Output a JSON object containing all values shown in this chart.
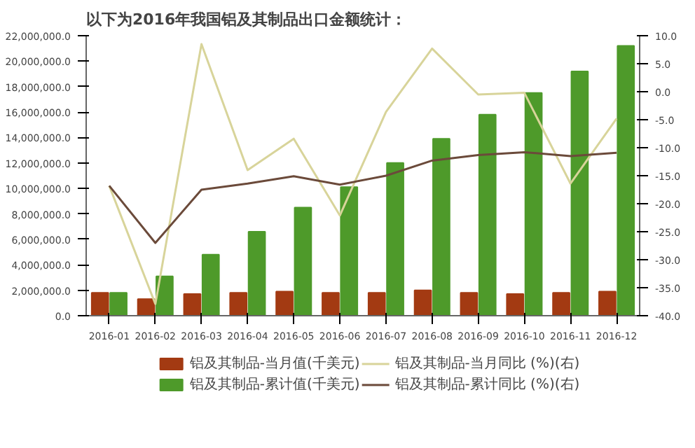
{
  "chart_data": {
    "type": "bar",
    "title": "以下为2016年我国铝及其制品出口金额统计：",
    "categories": [
      "2016-01",
      "2016-02",
      "2016-03",
      "2016-04",
      "2016-05",
      "2016-06",
      "2016-07",
      "2016-08",
      "2016-09",
      "2016-10",
      "2016-11",
      "2016-12"
    ],
    "series": [
      {
        "name": "铝及其制品-当月值(千美元)",
        "color": "#a33a12",
        "values": [
          1800000,
          1300000,
          1700000,
          1800000,
          1900000,
          1800000,
          1800000,
          2000000,
          1800000,
          1700000,
          1800000,
          1900000
        ]
      },
      {
        "name": "铝及其制品-累计值(千美元)",
        "color": "#4e9a2a",
        "values": [
          1800000,
          3100000,
          4800000,
          6600000,
          8500000,
          10100000,
          12000000,
          13900000,
          15800000,
          17500000,
          19200000,
          21200000
        ]
      },
      {
        "name": "铝及其制品-当月同比 (%)(右)",
        "color": "#d8d49a",
        "type": "line",
        "axis": "y2",
        "values": [
          -16.8,
          -37.9,
          8.5,
          -14.0,
          -8.4,
          -22.1,
          -3.6,
          7.7,
          -0.5,
          -0.2,
          -16.4,
          -4.8
        ]
      },
      {
        "name": "铝及其制品-累计同比 (%)(右)",
        "color": "#6b4a3a",
        "type": "line",
        "axis": "y2",
        "values": [
          -16.8,
          -27.0,
          -17.5,
          -16.4,
          -15.1,
          -16.6,
          -15.0,
          -12.3,
          -11.3,
          -10.8,
          -11.5,
          -10.9
        ]
      }
    ],
    "ylim": [
      0,
      22000000
    ],
    "yticks": [
      {
        "value": 0,
        "label": "0.0"
      },
      {
        "value": 2000000,
        "label": "2,000,000.0"
      },
      {
        "value": 4000000,
        "label": "4,000,000.0"
      },
      {
        "value": 6000000,
        "label": "6,000,000.0"
      },
      {
        "value": 8000000,
        "label": "8,000,000.0"
      },
      {
        "value": 10000000,
        "label": "10,000,000.0"
      },
      {
        "value": 12000000,
        "label": "12,000,000.0"
      },
      {
        "value": 14000000,
        "label": "14,000,000.0"
      },
      {
        "value": 16000000,
        "label": "16,000,000.0"
      },
      {
        "value": 18000000,
        "label": "18,000,000.0"
      },
      {
        "value": 20000000,
        "label": "20,000,000.0"
      },
      {
        "value": 22000000,
        "label": "22,000,000.0"
      }
    ],
    "y2lim": [
      -40,
      10
    ],
    "y2ticks": [
      {
        "value": -40,
        "label": "-40.0"
      },
      {
        "value": -35,
        "label": "-35.0"
      },
      {
        "value": -30,
        "label": "-30.0"
      },
      {
        "value": -25,
        "label": "-25.0"
      },
      {
        "value": -20,
        "label": "-20.0"
      },
      {
        "value": -15,
        "label": "-15.0"
      },
      {
        "value": -10,
        "label": "-10.0"
      },
      {
        "value": -5,
        "label": "-5.0"
      },
      {
        "value": 0,
        "label": "0.0"
      },
      {
        "value": 5,
        "label": "5.0"
      },
      {
        "value": 10,
        "label": "10.0"
      }
    ],
    "grid": false,
    "legend": "bottom"
  }
}
